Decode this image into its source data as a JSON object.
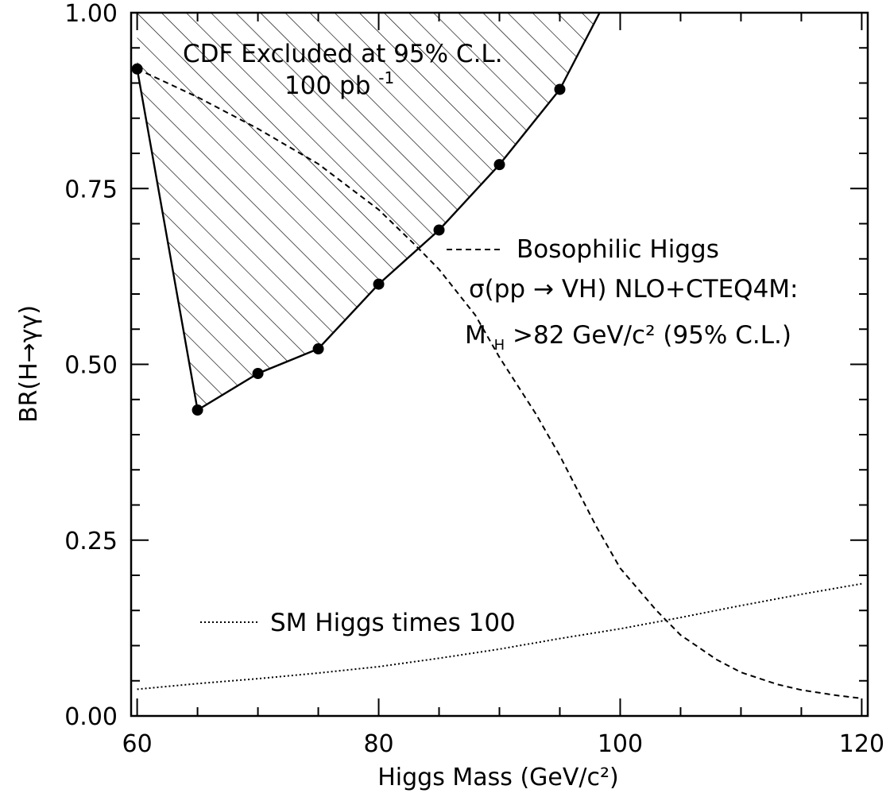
{
  "chart_data": {
    "type": "line",
    "xlabel": "Higgs Mass (GeV/c²)",
    "ylabel": "BR(H→γγ)",
    "xlim": [
      59.5,
      120.5
    ],
    "ylim": [
      0,
      1.0
    ],
    "x_ticks": [
      "60",
      "80",
      "100",
      "120"
    ],
    "x_tick_values": [
      60,
      80,
      100,
      120
    ],
    "y_ticks": [
      "0.00",
      "0.25",
      "0.50",
      "0.75",
      "1.00"
    ],
    "y_tick_values": [
      0,
      0.25,
      0.5,
      0.75,
      1.0
    ],
    "grid": false,
    "exclusion": {
      "x": [
        60,
        65,
        70,
        75,
        80,
        85,
        90,
        95
      ],
      "y": [
        0.92,
        0.435,
        0.487,
        0.522,
        0.614,
        0.691,
        0.784,
        0.891
      ],
      "boundary_end": {
        "x": 98.3,
        "y": 1.0
      },
      "fill": "hatched"
    },
    "series": [
      {
        "style": "dashed",
        "x": [
          60,
          65,
          70,
          75,
          80,
          83,
          85,
          88,
          90,
          93,
          95,
          98,
          100,
          103,
          105,
          108,
          110,
          113,
          115,
          118,
          120
        ],
        "y": [
          0.92,
          0.88,
          0.835,
          0.785,
          0.72,
          0.67,
          0.635,
          0.57,
          0.51,
          0.43,
          0.37,
          0.27,
          0.21,
          0.15,
          0.115,
          0.08,
          0.062,
          0.045,
          0.037,
          0.029,
          0.025
        ]
      },
      {
        "style": "dotted",
        "x": [
          60,
          65,
          70,
          75,
          80,
          85,
          90,
          95,
          100,
          105,
          110,
          115,
          120
        ],
        "y": [
          0.038,
          0.046,
          0.053,
          0.061,
          0.07,
          0.082,
          0.095,
          0.11,
          0.124,
          0.14,
          0.157,
          0.173,
          0.188
        ]
      }
    ],
    "annotations": {
      "excluded_line1": "CDF Excluded at 95% C.L.",
      "excluded_line2_base": "100 pb",
      "excluded_line2_sup": "-1",
      "boso_legend": "Bosophilic Higgs",
      "xsec_sigma": "σ(pp",
      "xsec_arrow": "→",
      "xsec_rest": "VH) NLO+CTEQ4M:",
      "limit_M": "M",
      "limit_sub": "H",
      "limit_rest": ">82 GeV/c² (95% C.L.)",
      "sm_legend": "SM Higgs times 100"
    }
  }
}
